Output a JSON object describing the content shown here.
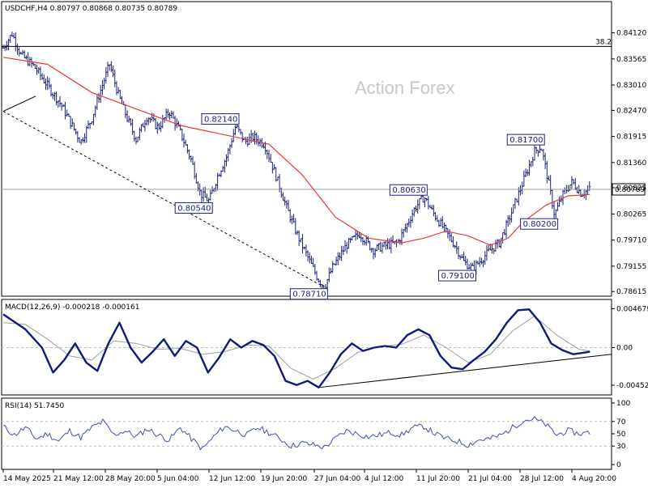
{
  "header": {
    "main_info": "USDCHF,H4  0.80797 0.80868 0.80735 0.80789",
    "macd_info": "MACD(12,26,9) -0.000218 -0.000161",
    "rsi_info": "RSI(14) 51.7450"
  },
  "watermark": "Action Forex",
  "colors": {
    "bars": "#1a237e",
    "ma": "#e53935",
    "macd_main": "#0d1b7a",
    "macd_signal": "#9e9e9e",
    "rsi": "#3f51b5",
    "fib": "#000000"
  },
  "chart_data": [
    {
      "type": "ohlc",
      "price_axis": {
        "ticks": [
          "0.84120",
          "0.83565",
          "0.83010",
          "0.82470",
          "0.81915",
          "0.81360",
          "0.80825",
          "0.80265",
          "0.79710",
          "0.79155",
          "0.78615"
        ],
        "range": [
          0.7855,
          0.8475
        ]
      },
      "x_axis_labels": [
        "14 May 2025",
        "21 May 12:00",
        "28 May 20:00",
        "5 Jun 04:00",
        "12 Jun 12:00",
        "19 Jun 20:00",
        "27 Jun 04:00",
        "4 Jul 12:00",
        "11 Jul 20:00",
        "21 Jul 04:00",
        "28 Jul 12:00",
        "4 Aug 20:00"
      ],
      "close_path": [
        [
          0,
          0.838
        ],
        [
          8,
          0.841
        ],
        [
          16,
          0.8365
        ],
        [
          28,
          0.834
        ],
        [
          40,
          0.83
        ],
        [
          52,
          0.826
        ],
        [
          60,
          0.8225
        ],
        [
          70,
          0.818
        ],
        [
          80,
          0.823
        ],
        [
          88,
          0.829
        ],
        [
          96,
          0.8345
        ],
        [
          104,
          0.828
        ],
        [
          112,
          0.823
        ],
        [
          120,
          0.8185
        ],
        [
          130,
          0.8235
        ],
        [
          140,
          0.821
        ],
        [
          150,
          0.8245
        ],
        [
          160,
          0.82
        ],
        [
          170,
          0.814
        ],
        [
          178,
          0.807
        ],
        [
          186,
          0.8054
        ],
        [
          194,
          0.811
        ],
        [
          202,
          0.815
        ],
        [
          210,
          0.8214
        ],
        [
          218,
          0.818
        ],
        [
          226,
          0.819
        ],
        [
          236,
          0.8175
        ],
        [
          246,
          0.811
        ],
        [
          256,
          0.804
        ],
        [
          266,
          0.798
        ],
        [
          276,
          0.793
        ],
        [
          284,
          0.789
        ],
        [
          290,
          0.7871
        ],
        [
          298,
          0.7915
        ],
        [
          310,
          0.796
        ],
        [
          322,
          0.7985
        ],
        [
          334,
          0.795
        ],
        [
          346,
          0.796
        ],
        [
          356,
          0.7965
        ],
        [
          364,
          0.8
        ],
        [
          372,
          0.804
        ],
        [
          380,
          0.8063
        ],
        [
          388,
          0.803
        ],
        [
          398,
          0.7995
        ],
        [
          408,
          0.796
        ],
        [
          416,
          0.7925
        ],
        [
          424,
          0.791
        ],
        [
          432,
          0.793
        ],
        [
          440,
          0.795
        ],
        [
          448,
          0.7965
        ],
        [
          456,
          0.801
        ],
        [
          464,
          0.806
        ],
        [
          472,
          0.811
        ],
        [
          480,
          0.816
        ],
        [
          486,
          0.817
        ],
        [
          492,
          0.81
        ],
        [
          498,
          0.8025
        ],
        [
          506,
          0.807
        ],
        [
          514,
          0.8095
        ],
        [
          522,
          0.807
        ],
        [
          530,
          0.8079
        ]
      ],
      "moving_average_path": [
        [
          0,
          0.836
        ],
        [
          40,
          0.8345
        ],
        [
          80,
          0.8285
        ],
        [
          120,
          0.825
        ],
        [
          160,
          0.8215
        ],
        [
          200,
          0.8195
        ],
        [
          240,
          0.8175
        ],
        [
          270,
          0.811
        ],
        [
          300,
          0.802
        ],
        [
          330,
          0.7975
        ],
        [
          360,
          0.7965
        ],
        [
          380,
          0.7975
        ],
        [
          400,
          0.799
        ],
        [
          420,
          0.798
        ],
        [
          440,
          0.796
        ],
        [
          456,
          0.7975
        ],
        [
          470,
          0.801
        ],
        [
          490,
          0.8045
        ],
        [
          510,
          0.8065
        ],
        [
          530,
          0.8068
        ]
      ],
      "labels": [
        {
          "text": "0.80540",
          "x": 186,
          "y": 0.8054,
          "pos": "left-below"
        },
        {
          "text": "0.82140",
          "x": 210,
          "y": 0.8214,
          "pos": "left-above"
        },
        {
          "text": "0.78710",
          "x": 290,
          "y": 0.7871,
          "pos": "left-below"
        },
        {
          "text": "0.80630",
          "x": 380,
          "y": 0.8063,
          "pos": "left-above"
        },
        {
          "text": "0.79100",
          "x": 424,
          "y": 0.791,
          "pos": "left-below"
        },
        {
          "text": "0.81700",
          "x": 486,
          "y": 0.817,
          "pos": "left-above"
        },
        {
          "text": "0.80200",
          "x": 498,
          "y": 0.802,
          "pos": "left-below"
        }
      ],
      "fib_label": "38.2",
      "fib_level": 0.8383,
      "current_price": "0.80789",
      "current_value": 0.80789,
      "trendline": [
        [
          0,
          0.8245
        ],
        [
          290,
          0.7871
        ]
      ],
      "trendline_stub": [
        [
          0,
          0.8245
        ],
        [
          22,
          0.826
        ]
      ]
    },
    {
      "type": "line",
      "name": "MACD",
      "ticks": [
        "0.004679",
        "0.00",
        "-0.004528"
      ],
      "range": [
        -0.0055,
        0.0056
      ],
      "main": [
        [
          0,
          0.004
        ],
        [
          20,
          0.0022
        ],
        [
          35,
          0.0
        ],
        [
          45,
          -0.003
        ],
        [
          55,
          -0.0015
        ],
        [
          65,
          0.0005
        ],
        [
          75,
          -0.0018
        ],
        [
          85,
          -0.0028
        ],
        [
          95,
          0.0005
        ],
        [
          105,
          0.003
        ],
        [
          115,
          0.0
        ],
        [
          125,
          -0.0018
        ],
        [
          135,
          -0.0005
        ],
        [
          145,
          0.001
        ],
        [
          155,
          -0.001
        ],
        [
          165,
          0.0008
        ],
        [
          175,
          0.0
        ],
        [
          185,
          -0.003
        ],
        [
          195,
          -0.0012
        ],
        [
          205,
          0.001
        ],
        [
          215,
          0.0
        ],
        [
          225,
          0.0008
        ],
        [
          235,
          0.0003
        ],
        [
          245,
          -0.001
        ],
        [
          255,
          -0.004
        ],
        [
          265,
          -0.0045
        ],
        [
          275,
          -0.004
        ],
        [
          285,
          -0.0048
        ],
        [
          295,
          -0.003
        ],
        [
          305,
          -0.0008
        ],
        [
          315,
          0.0005
        ],
        [
          325,
          -0.0004
        ],
        [
          335,
          0.0
        ],
        [
          345,
          0.0002
        ],
        [
          355,
          0.0
        ],
        [
          365,
          0.0015
        ],
        [
          375,
          0.0022
        ],
        [
          385,
          0.0015
        ],
        [
          395,
          -0.001
        ],
        [
          405,
          -0.0024
        ],
        [
          415,
          -0.0026
        ],
        [
          425,
          -0.0015
        ],
        [
          435,
          -0.0005
        ],
        [
          445,
          0.001
        ],
        [
          455,
          0.003
        ],
        [
          465,
          0.0045
        ],
        [
          475,
          0.0046
        ],
        [
          485,
          0.003
        ],
        [
          495,
          0.0005
        ],
        [
          505,
          -0.0003
        ],
        [
          515,
          -0.0008
        ],
        [
          525,
          -0.0006
        ],
        [
          530,
          -0.0005
        ]
      ],
      "signal": [
        [
          0,
          0.003
        ],
        [
          20,
          0.0028
        ],
        [
          40,
          0.001
        ],
        [
          60,
          -0.001
        ],
        [
          80,
          -0.0015
        ],
        [
          100,
          0.0008
        ],
        [
          120,
          0.0005
        ],
        [
          140,
          -0.0002
        ],
        [
          160,
          -0.0001
        ],
        [
          180,
          -0.0008
        ],
        [
          200,
          -0.0005
        ],
        [
          220,
          0.0003
        ],
        [
          240,
          0.0002
        ],
        [
          260,
          -0.0025
        ],
        [
          280,
          -0.0038
        ],
        [
          300,
          -0.0025
        ],
        [
          320,
          -0.0006
        ],
        [
          340,
          0.0001
        ],
        [
          360,
          0.0004
        ],
        [
          380,
          0.0015
        ],
        [
          400,
          0.0
        ],
        [
          420,
          -0.0018
        ],
        [
          440,
          -0.0008
        ],
        [
          460,
          0.002
        ],
        [
          480,
          0.0038
        ],
        [
          500,
          0.0015
        ],
        [
          520,
          -0.0002
        ],
        [
          530,
          -0.0004
        ]
      ],
      "trendline": [
        [
          285,
          -0.0048
        ],
        [
          540,
          -0.0008
        ]
      ]
    },
    {
      "type": "line",
      "name": "RSI",
      "ticks": [
        "100",
        "70",
        "50",
        "30",
        "0"
      ],
      "range": [
        0,
        100
      ],
      "values": [
        [
          0,
          62
        ],
        [
          10,
          48
        ],
        [
          20,
          60
        ],
        [
          30,
          42
        ],
        [
          40,
          50
        ],
        [
          50,
          38
        ],
        [
          60,
          55
        ],
        [
          70,
          44
        ],
        [
          80,
          60
        ],
        [
          90,
          70
        ],
        [
          100,
          48
        ],
        [
          110,
          55
        ],
        [
          120,
          45
        ],
        [
          130,
          58
        ],
        [
          140,
          48
        ],
        [
          150,
          40
        ],
        [
          160,
          60
        ],
        [
          170,
          42
        ],
        [
          180,
          25
        ],
        [
          190,
          45
        ],
        [
          200,
          62
        ],
        [
          210,
          55
        ],
        [
          220,
          48
        ],
        [
          230,
          60
        ],
        [
          240,
          52
        ],
        [
          250,
          42
        ],
        [
          260,
          30
        ],
        [
          270,
          35
        ],
        [
          280,
          32
        ],
        [
          290,
          28
        ],
        [
          300,
          42
        ],
        [
          310,
          55
        ],
        [
          320,
          50
        ],
        [
          330,
          45
        ],
        [
          340,
          48
        ],
        [
          350,
          52
        ],
        [
          360,
          48
        ],
        [
          370,
          60
        ],
        [
          380,
          62
        ],
        [
          390,
          50
        ],
        [
          400,
          42
        ],
        [
          410,
          38
        ],
        [
          420,
          32
        ],
        [
          430,
          40
        ],
        [
          440,
          42
        ],
        [
          450,
          48
        ],
        [
          460,
          60
        ],
        [
          470,
          72
        ],
        [
          480,
          74
        ],
        [
          490,
          65
        ],
        [
          500,
          48
        ],
        [
          510,
          55
        ],
        [
          520,
          50
        ],
        [
          530,
          52
        ]
      ]
    }
  ]
}
